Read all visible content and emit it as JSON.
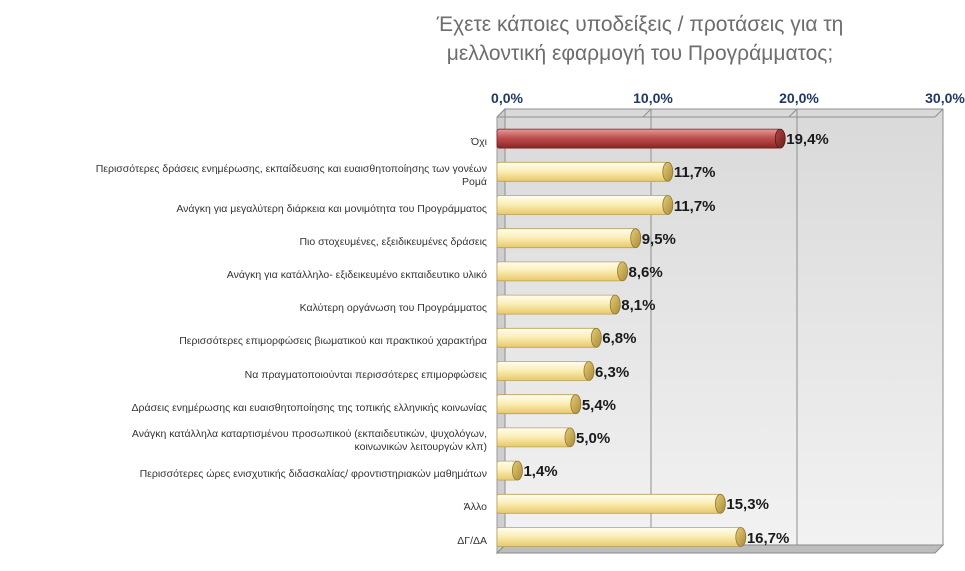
{
  "chart_data": {
    "type": "bar",
    "orientation": "horizontal",
    "title_lines": [
      "Έχετε κάποιες υποδείξεις / προτάσεις για τη",
      "μελλοντική εφαρμογή του Προγράμματος;"
    ],
    "categories": [
      [
        "Όχι"
      ],
      [
        "Περισσότερες δράσεις ενημέρωσης, εκπαίδευσης και ευαισθητοποίησης των γονέων",
        "Ρομά"
      ],
      [
        "Ανάγκη για μεγαλύτερη διάρκεια και μονιμότητα του Προγράμματος"
      ],
      [
        "Πιο στοχευμένες, εξειδικευμένες δράσεις"
      ],
      [
        "Ανάγκη για κατάλληλο- εξιδεικευμένο εκπαιδευτικο υλικό"
      ],
      [
        "Καλύτερη οργάνωση του Προγράμματος"
      ],
      [
        "Περισσότερες επιμορφώσεις βιωματικού και πρακτικού χαρακτήρα"
      ],
      [
        "Να πραγματοποιούνται περισσότερες επιμορφώσεις"
      ],
      [
        "Δράσεις ενημέρωσης και ευαισθητοποίησης της τοπικής ελληνικής κοινωνίας"
      ],
      [
        "Ανάγκη κατάλληλα καταρτισμένου προσωπικού (εκπαιδευτικών, ψυχολόγων,",
        "κοινωνικών λειτουργών κλπ)"
      ],
      [
        "Περισσότερες ώρες ενισχυτικής διδασκαλίας/ φροντιστηριακών μαθημάτων"
      ],
      [
        "Άλλο"
      ],
      [
        "ΔΓ/ΔΑ"
      ]
    ],
    "values": [
      19.4,
      11.7,
      11.7,
      9.5,
      8.6,
      8.1,
      6.8,
      6.3,
      5.4,
      5.0,
      1.4,
      15.3,
      16.7
    ],
    "value_labels": [
      "19,4%",
      "11,7%",
      "11,7%",
      "9,5%",
      "8,6%",
      "8,1%",
      "6,8%",
      "6,3%",
      "5,4%",
      "5,0%",
      "1,4%",
      "15,3%",
      "16,7%"
    ],
    "xlim": [
      0,
      30
    ],
    "ticks": [
      0,
      10,
      20,
      30
    ],
    "tick_labels": [
      "0,0%",
      "10,0%",
      "20,0%",
      "30,0%"
    ],
    "x_axis_position": "top",
    "grid": true,
    "legend": "none",
    "colors": {
      "highlight_bar": "#b23a3a",
      "bar": "#f3df8e",
      "bar_end": "#c9a44a",
      "plot_background": "#e8e8e8",
      "title": "#6d6d6d",
      "tick_label": "#1f3864"
    }
  }
}
